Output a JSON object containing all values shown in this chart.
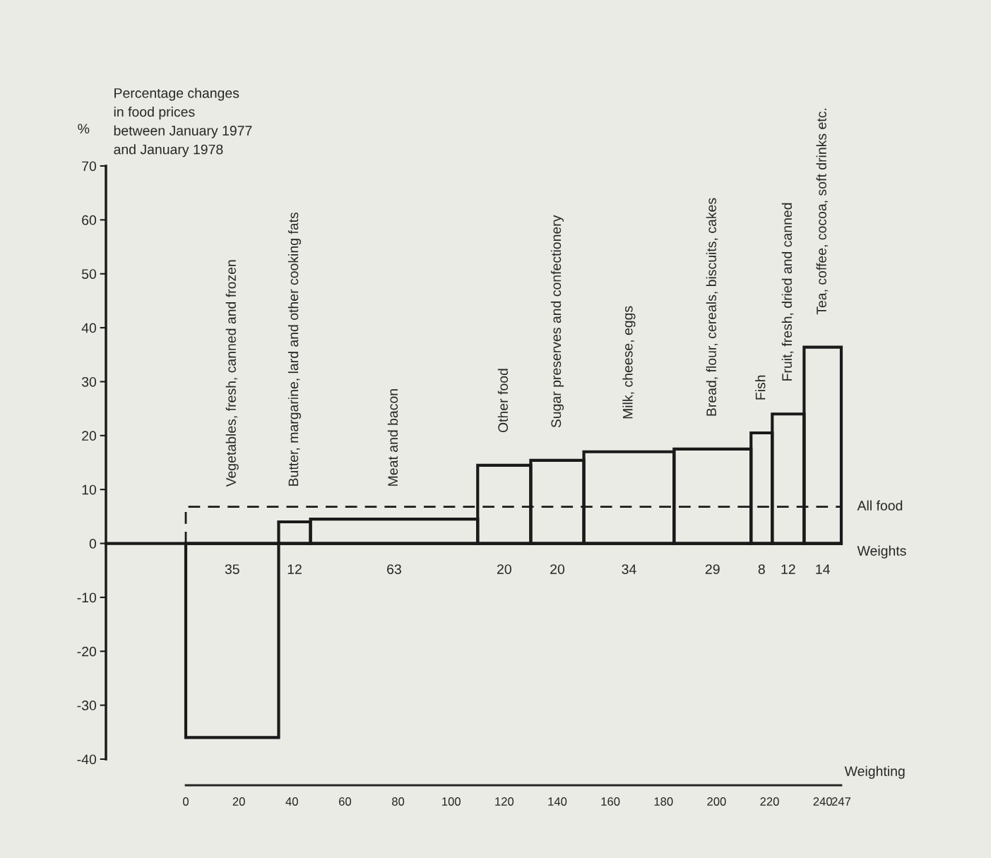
{
  "chart_data": {
    "type": "histogram",
    "title": "Percentage changes\nin food prices\nbetween January 1977\nand January 1978",
    "ylabel": "%",
    "xlabel": "Weighting",
    "categories": [
      "Vegetables, fresh, canned and frozen",
      "Butter, margarine, lard and other cooking fats",
      "Meat and bacon",
      "Other food",
      "Sugar preserves and confectionery",
      "Milk, cheese, eggs",
      "Bread, flour, cereals, biscuits, cakes",
      "Fish",
      "Fruit, fresh, dried and canned",
      "Tea, coffee, cocoa, soft drinks etc."
    ],
    "bins": [
      0,
      35,
      47,
      110,
      130,
      150,
      184,
      213,
      221,
      233,
      247
    ],
    "values": [
      -36,
      4,
      4.5,
      14.5,
      15.4,
      17,
      17.5,
      20.5,
      24,
      36.4
    ],
    "color": "#1a1a1a",
    "ylim": [
      -40,
      70
    ],
    "yticks": [
      -40,
      -30,
      -20,
      -10,
      0,
      10,
      20,
      30,
      40,
      50,
      60,
      70
    ],
    "xlim": [
      0,
      247
    ],
    "xticks": [
      0,
      20,
      40,
      60,
      80,
      100,
      120,
      140,
      160,
      180,
      200,
      220,
      240,
      247
    ],
    "ref_lines": [
      {
        "axis": "y",
        "value": 6.8,
        "label": "All food",
        "line_style": "dashed"
      }
    ],
    "annotations": [
      "Weights",
      "35",
      "12",
      "63",
      "20",
      "20",
      "34",
      "29",
      "8",
      "12",
      "14"
    ],
    "legend": false
  }
}
